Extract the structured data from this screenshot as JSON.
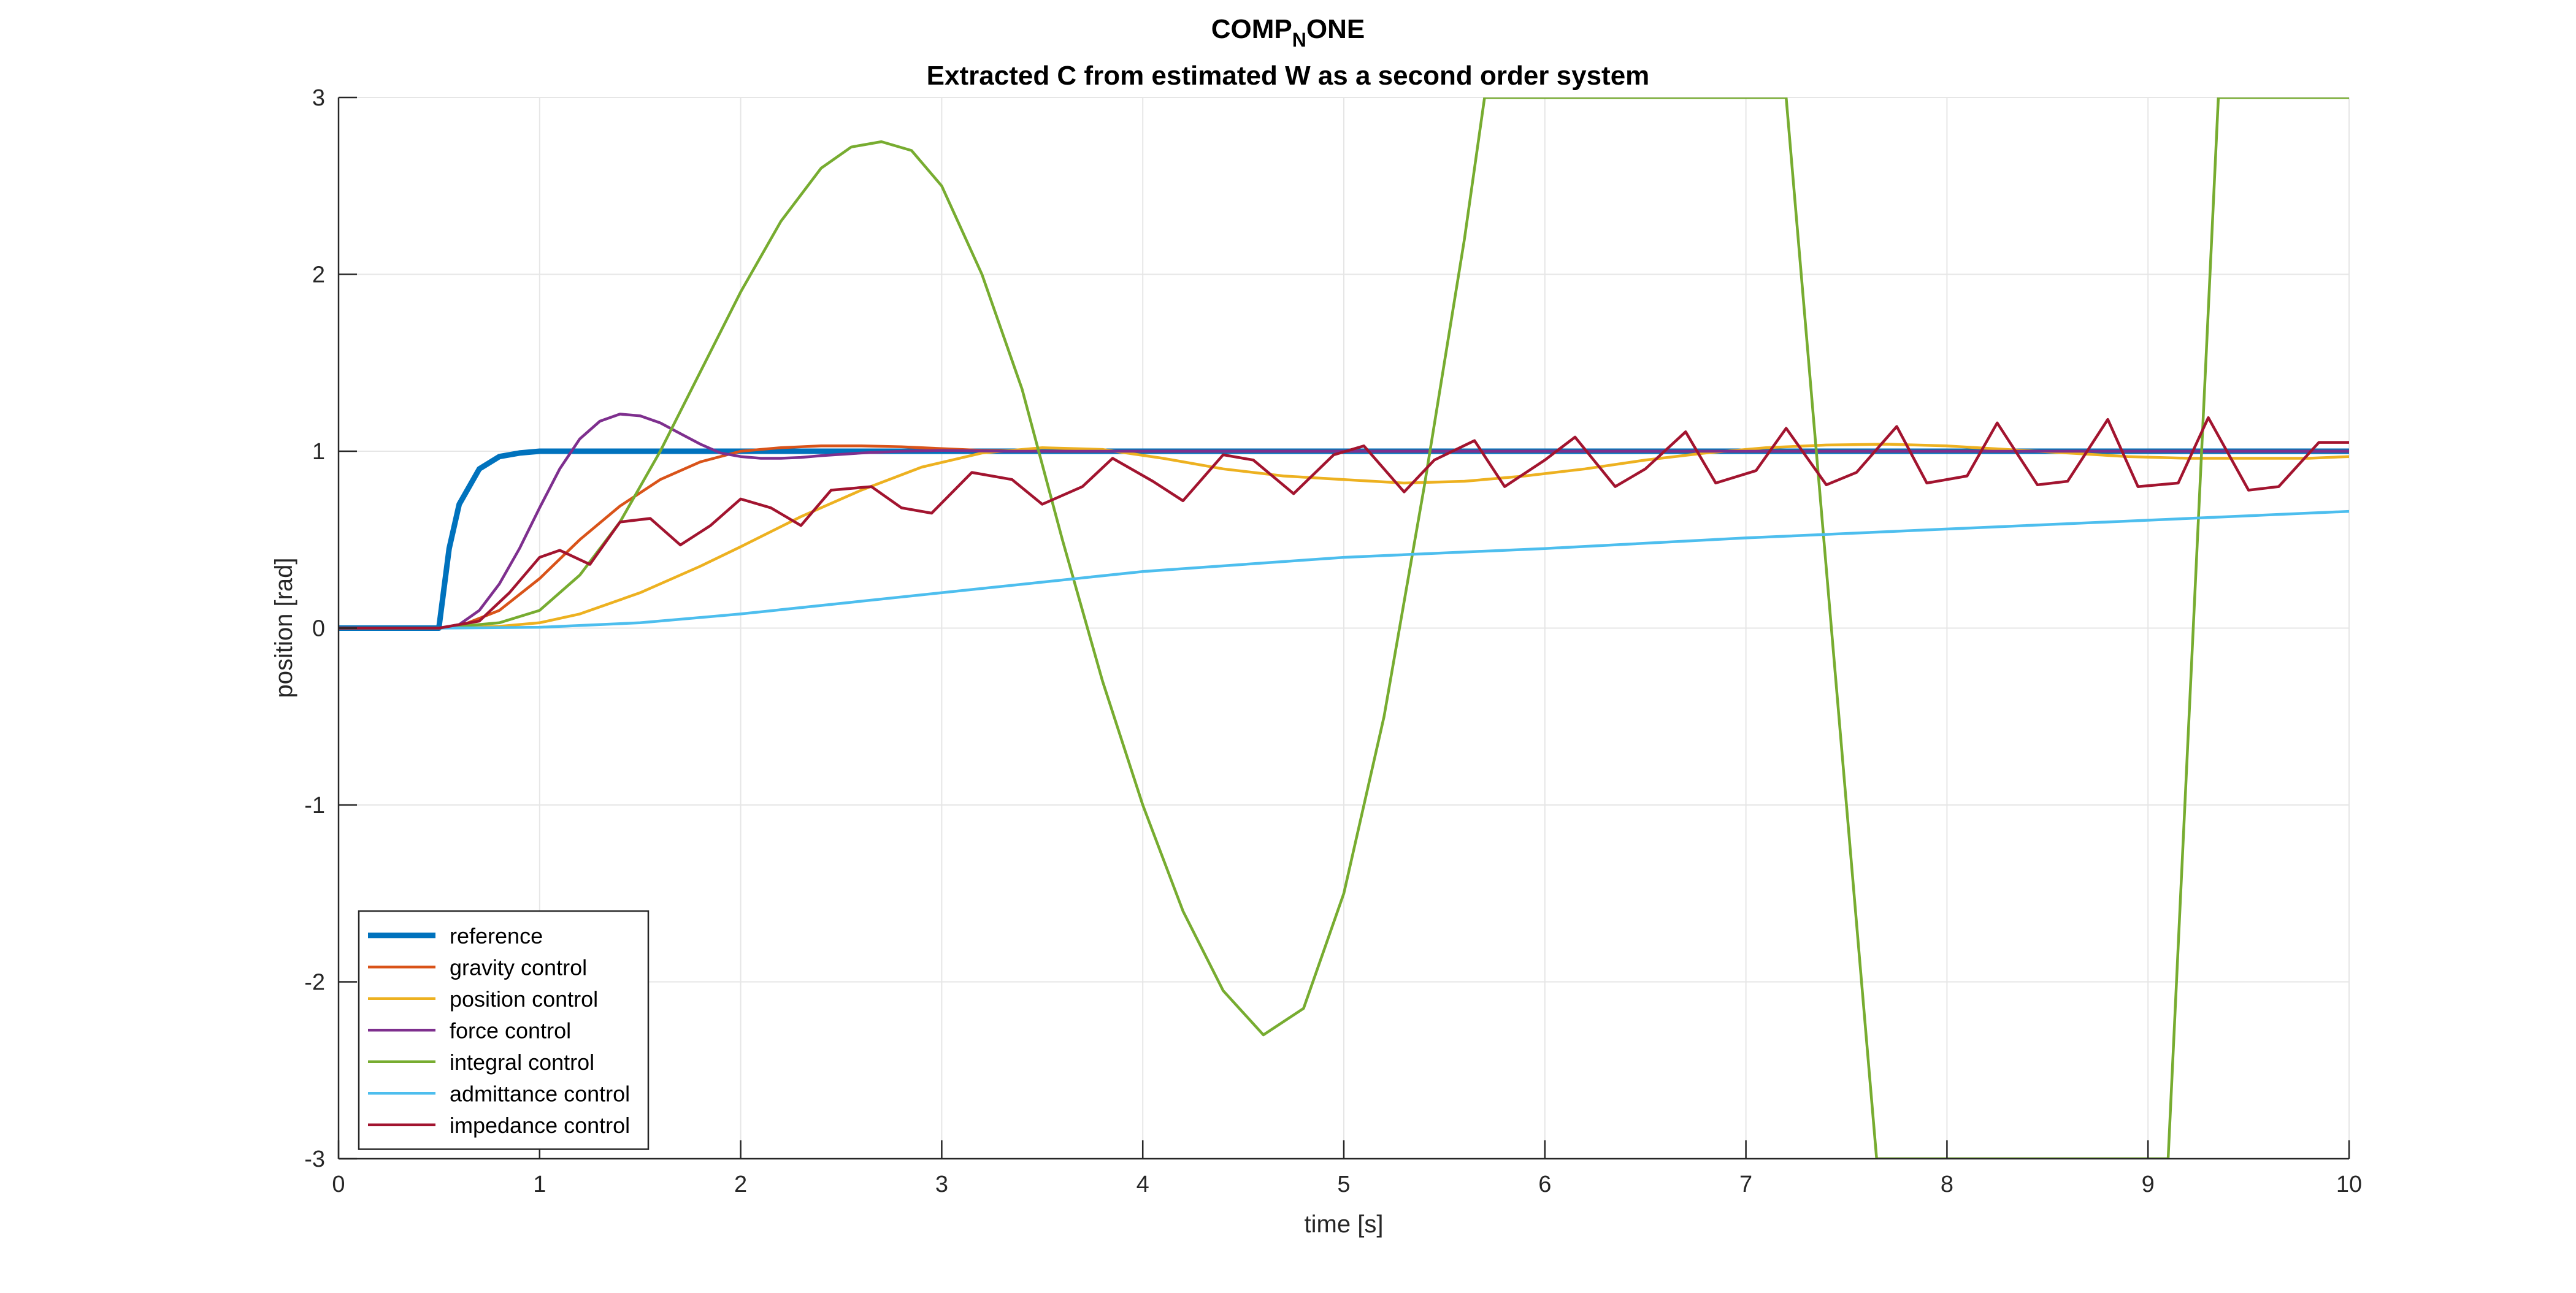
{
  "figure": {
    "title_main": "COMP",
    "title_sub": "N",
    "title_tail": "ONE",
    "subtitle": "Extracted C from estimated W as a second order system"
  },
  "chart_data": {
    "type": "line",
    "title": "COMP_NONE",
    "subtitle": "Extracted C from estimated W as a second order system",
    "xlabel": "time [s]",
    "ylabel": "position [rad]",
    "xlim": [
      0,
      10
    ],
    "ylim": [
      -3,
      3
    ],
    "xticks": [
      0,
      1,
      2,
      3,
      4,
      5,
      6,
      7,
      8,
      9,
      10
    ],
    "yticks": [
      -3,
      -2,
      -1,
      0,
      1,
      2,
      3
    ],
    "grid": true,
    "legend_location": "bottom-left",
    "series": [
      {
        "name": "reference",
        "color": "#0072BD",
        "bold": true,
        "x": [
          0,
          0.5,
          0.5,
          0.55,
          0.6,
          0.7,
          0.8,
          0.9,
          1.0,
          1.2,
          1.5,
          10
        ],
        "y": [
          0,
          0,
          0.01,
          0.45,
          0.7,
          0.9,
          0.97,
          0.99,
          1.0,
          1.0,
          1.0,
          1.0
        ]
      },
      {
        "name": "gravity control",
        "color": "#D95319",
        "x": [
          0,
          0.5,
          0.6,
          0.8,
          1.0,
          1.2,
          1.4,
          1.6,
          1.8,
          2.0,
          2.2,
          2.4,
          2.6,
          2.8,
          3.0,
          3.2,
          3.5,
          4.0,
          5.0,
          10
        ],
        "y": [
          0,
          0,
          0.01,
          0.1,
          0.28,
          0.5,
          0.69,
          0.84,
          0.94,
          1.0,
          1.02,
          1.03,
          1.03,
          1.025,
          1.015,
          1.005,
          1.0,
          1.0,
          1.0,
          1.0
        ]
      },
      {
        "name": "position control",
        "color": "#EDB120",
        "x": [
          0,
          0.5,
          0.8,
          1.0,
          1.2,
          1.5,
          1.8,
          2.0,
          2.3,
          2.6,
          2.9,
          3.2,
          3.5,
          3.8,
          4.1,
          4.4,
          4.7,
          5.0,
          5.3,
          5.6,
          5.9,
          6.2,
          6.5,
          6.8,
          7.1,
          7.4,
          7.7,
          8.0,
          8.3,
          8.6,
          8.9,
          9.2,
          9.5,
          9.8,
          10.0
        ],
        "y": [
          0,
          0,
          0.01,
          0.03,
          0.08,
          0.2,
          0.35,
          0.46,
          0.63,
          0.78,
          0.91,
          0.99,
          1.02,
          1.01,
          0.96,
          0.9,
          0.86,
          0.84,
          0.82,
          0.83,
          0.86,
          0.9,
          0.95,
          0.99,
          1.02,
          1.035,
          1.04,
          1.03,
          1.01,
          0.99,
          0.97,
          0.96,
          0.96,
          0.96,
          0.97
        ]
      },
      {
        "name": "force control",
        "color": "#7E2F8E",
        "x": [
          0,
          0.5,
          0.6,
          0.7,
          0.8,
          0.9,
          1.0,
          1.1,
          1.2,
          1.3,
          1.4,
          1.5,
          1.6,
          1.7,
          1.8,
          1.9,
          2.0,
          2.1,
          2.2,
          2.3,
          2.4,
          2.6,
          2.8,
          3.0,
          3.3,
          4.0,
          10.0
        ],
        "y": [
          0,
          0,
          0.02,
          0.1,
          0.25,
          0.45,
          0.68,
          0.9,
          1.07,
          1.17,
          1.21,
          1.2,
          1.16,
          1.1,
          1.04,
          0.99,
          0.97,
          0.96,
          0.96,
          0.965,
          0.975,
          0.99,
          1.0,
          1.005,
          1.0,
          1.0,
          1.0
        ]
      },
      {
        "name": "integral control",
        "color": "#77AC30",
        "x": [
          0,
          0.5,
          0.8,
          1.0,
          1.2,
          1.4,
          1.6,
          1.8,
          2.0,
          2.2,
          2.4,
          2.55,
          2.7,
          2.85,
          3.0,
          3.2,
          3.4,
          3.6,
          3.8,
          4.0,
          4.2,
          4.4,
          4.6,
          4.8,
          5.0,
          5.2,
          5.4,
          5.6,
          5.7,
          7.2,
          7.65,
          9.1,
          9.35,
          10.0
        ],
        "y": [
          0,
          0,
          0.03,
          0.1,
          0.3,
          0.6,
          1.0,
          1.45,
          1.9,
          2.3,
          2.6,
          2.72,
          2.75,
          2.7,
          2.5,
          2.0,
          1.35,
          0.5,
          -0.3,
          -1.0,
          -1.6,
          -2.05,
          -2.3,
          -2.15,
          -1.5,
          -0.5,
          0.8,
          2.2,
          3.0,
          3.0,
          -3.0,
          -3.0,
          3.0,
          3.0
        ]
      },
      {
        "name": "admittance control",
        "color": "#4DBEEE",
        "x": [
          0,
          0.5,
          1.0,
          1.5,
          2.0,
          2.5,
          3.0,
          3.5,
          4.0,
          5.0,
          6.0,
          7.0,
          8.0,
          9.0,
          10.0
        ],
        "y": [
          0,
          0,
          0.005,
          0.03,
          0.08,
          0.14,
          0.2,
          0.26,
          0.32,
          0.4,
          0.45,
          0.51,
          0.56,
          0.61,
          0.66
        ]
      },
      {
        "name": "impedance control",
        "color": "#A2142F",
        "x": [
          0,
          0.5,
          0.7,
          0.85,
          1.0,
          1.1,
          1.25,
          1.4,
          1.55,
          1.7,
          1.85,
          2.0,
          2.15,
          2.3,
          2.45,
          2.65,
          2.8,
          2.95,
          3.15,
          3.35,
          3.5,
          3.7,
          3.85,
          4.05,
          4.2,
          4.4,
          4.55,
          4.75,
          4.95,
          5.1,
          5.3,
          5.45,
          5.65,
          5.8,
          6.0,
          6.15,
          6.35,
          6.5,
          6.7,
          6.85,
          7.05,
          7.2,
          7.4,
          7.55,
          7.75,
          7.9,
          8.1,
          8.25,
          8.45,
          8.6,
          8.8,
          8.95,
          9.15,
          9.3,
          9.5,
          9.65,
          9.85,
          10.0
        ],
        "y": [
          0,
          0,
          0.04,
          0.2,
          0.4,
          0.44,
          0.36,
          0.6,
          0.62,
          0.47,
          0.58,
          0.73,
          0.68,
          0.58,
          0.78,
          0.8,
          0.68,
          0.65,
          0.88,
          0.84,
          0.7,
          0.8,
          0.96,
          0.83,
          0.72,
          0.98,
          0.95,
          0.76,
          0.98,
          1.03,
          0.77,
          0.95,
          1.06,
          0.8,
          0.95,
          1.08,
          0.8,
          0.9,
          1.11,
          0.82,
          0.89,
          1.13,
          0.81,
          0.88,
          1.14,
          0.82,
          0.86,
          1.16,
          0.81,
          0.83,
          1.18,
          0.8,
          0.82,
          1.19,
          0.78,
          0.8,
          1.05,
          1.05
        ]
      }
    ]
  }
}
